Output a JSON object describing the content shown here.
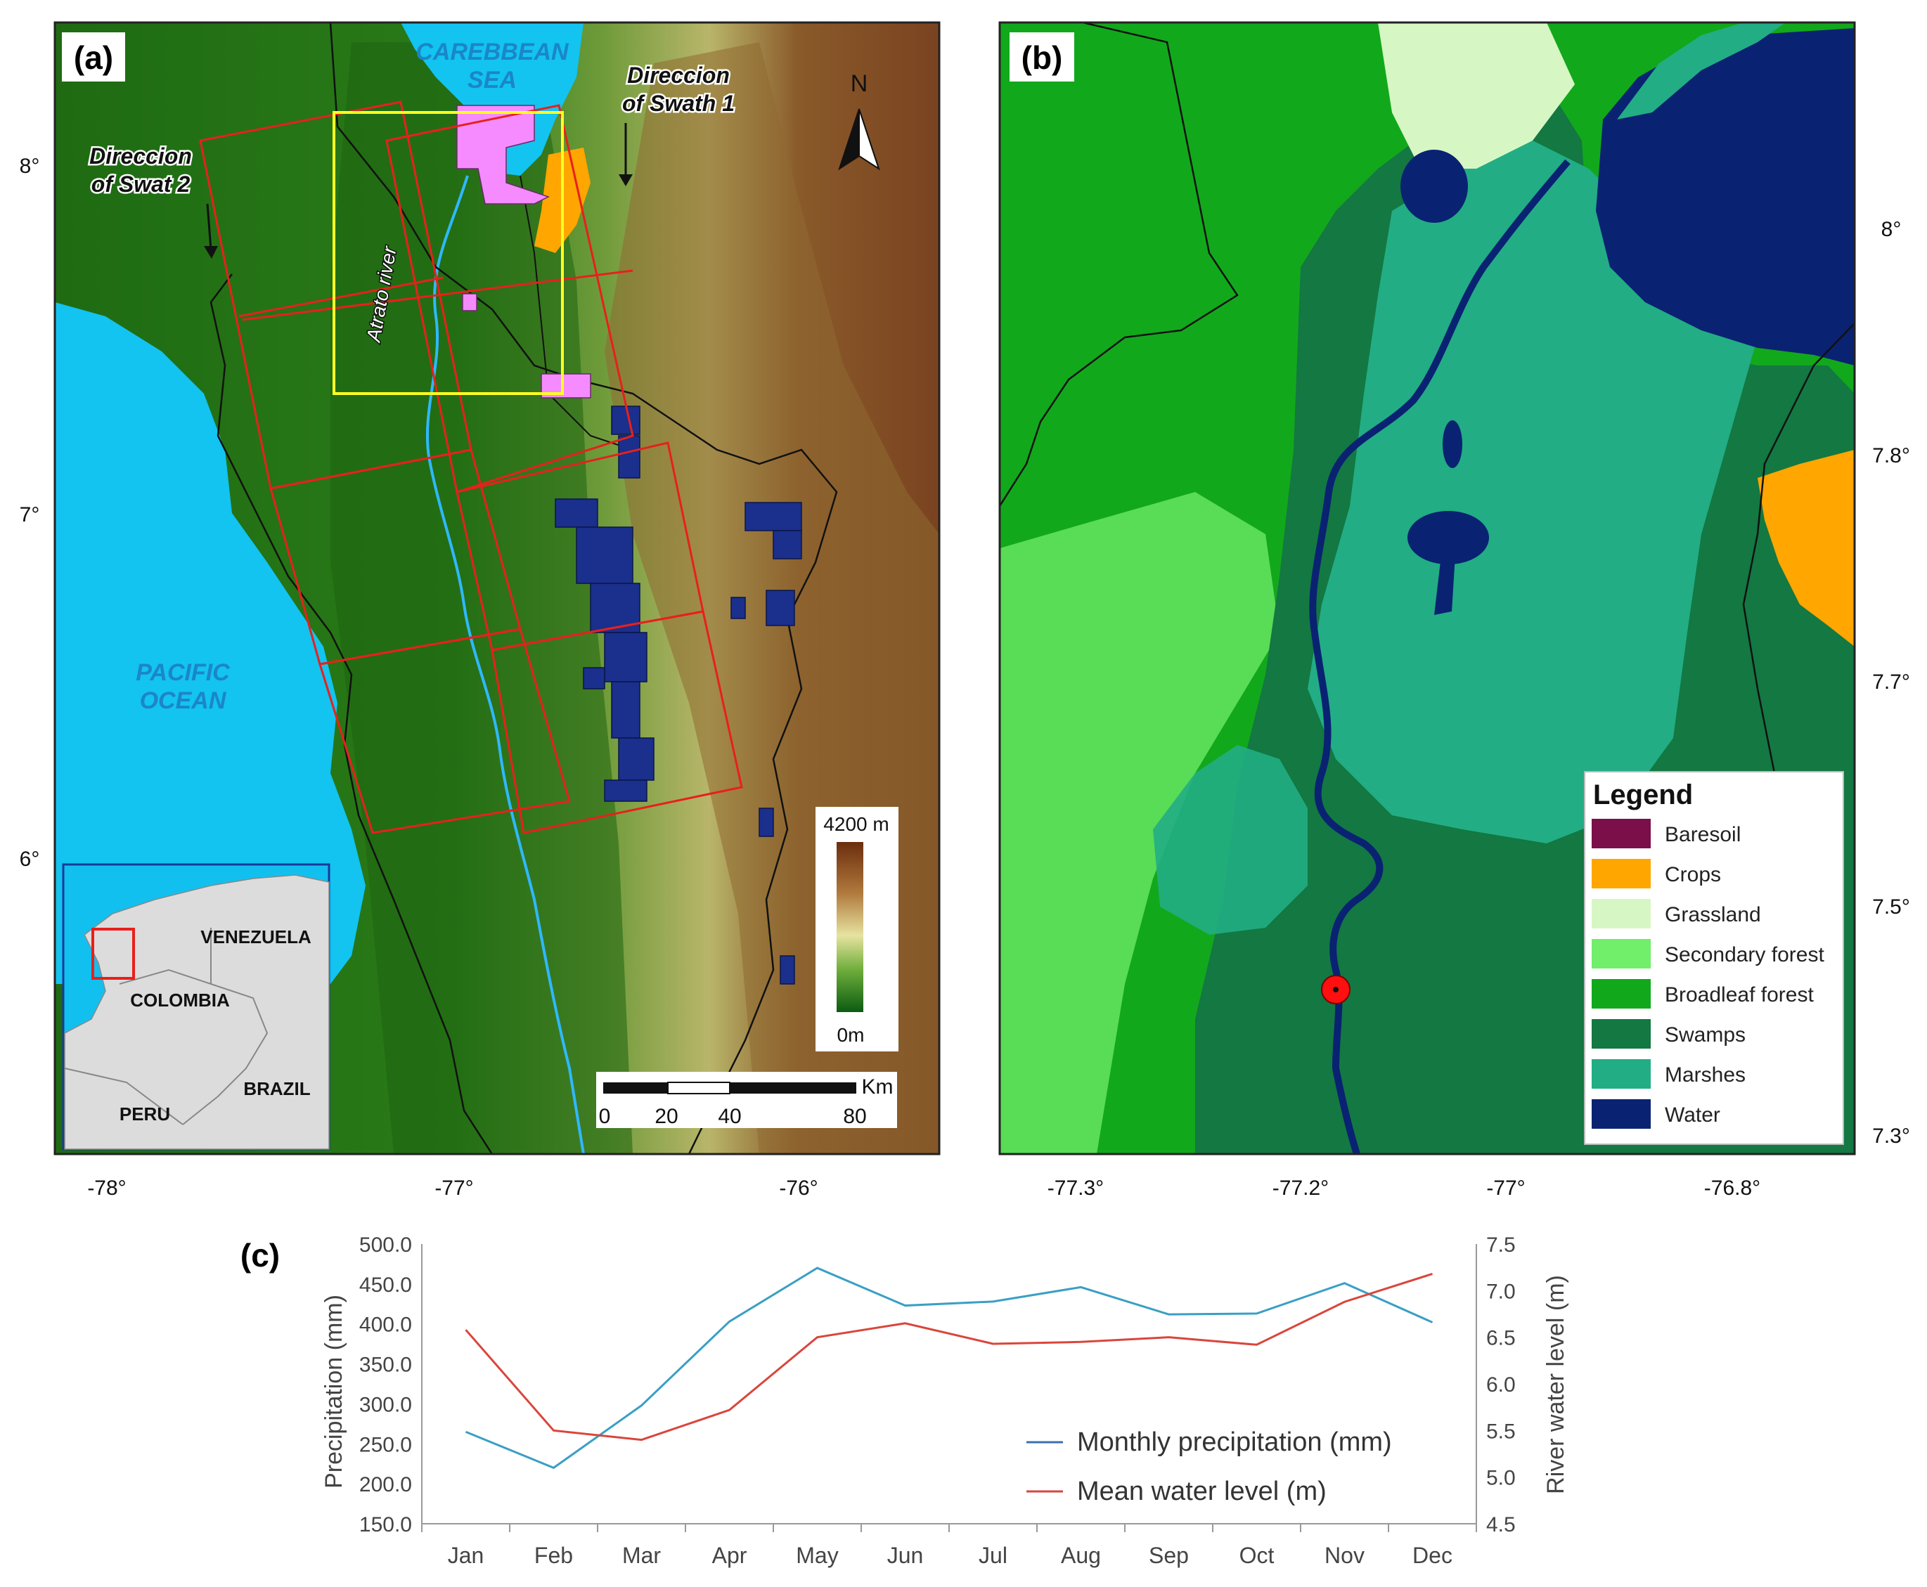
{
  "panel_a": {
    "label": "(a)",
    "caribbean": [
      "CAREBBEAN",
      "SEA"
    ],
    "pacific": [
      "PACIFIC",
      "OCEAN"
    ],
    "swath1": [
      "Direccion",
      "of Swath 1"
    ],
    "swath2": [
      "Direccion",
      "of Swat 2"
    ],
    "river": "Atrato river",
    "north": "N",
    "lat_ticks": [
      "8°",
      "7°",
      "6°"
    ],
    "lon_ticks": [
      "-78°",
      "-77°",
      "-76°"
    ],
    "elev_max": "4200 m",
    "elev_min": "0m",
    "scale_unit": "Km",
    "scale_ticks": [
      "0",
      "20",
      "40",
      "80"
    ],
    "inset": {
      "venezuela": "VENEZUELA",
      "colombia": "COLOMBIA",
      "peru": "PERU",
      "brazil": "BRAZIL"
    }
  },
  "panel_b": {
    "label": "(b)",
    "lat_ticks": [
      "8°",
      "7.8°",
      "7.7°",
      "7.5°",
      "7.3°"
    ],
    "lon_ticks": [
      "-77.3°",
      "-77.2°",
      "-77°",
      "-76.8°"
    ],
    "legend_title": "Legend",
    "legend": [
      {
        "name": "Baresoil",
        "color": "#7a0f4a"
      },
      {
        "name": "Crops",
        "color": "#ffa600"
      },
      {
        "name": "Grassland",
        "color": "#d6f7c4"
      },
      {
        "name": "Secondary forest",
        "color": "#71ee6a"
      },
      {
        "name": "Broadleaf forest",
        "color": "#12a81c"
      },
      {
        "name": "Swamps",
        "color": "#137842"
      },
      {
        "name": "Marshes",
        "color": "#22ad84"
      },
      {
        "name": "Water",
        "color": "#0a2272"
      }
    ]
  },
  "chart_data": {
    "type": "line",
    "panel_label": "(c)",
    "categories": [
      "Jan",
      "Feb",
      "Mar",
      "Apr",
      "May",
      "Jun",
      "Jul",
      "Aug",
      "Sep",
      "Oct",
      "Nov",
      "Dec"
    ],
    "ylabel": "Precipitation (mm)",
    "y2label": "River water level (m)",
    "ylim": [
      150,
      500
    ],
    "y2lim": [
      4.5,
      7.5
    ],
    "yticks": [
      "150.0",
      "200.0",
      "250.0",
      "300.0",
      "350.0",
      "400.0",
      "450.0",
      "500.0"
    ],
    "y2ticks": [
      "4.5",
      "5.0",
      "5.5",
      "6.0",
      "6.5",
      "7.0",
      "7.5"
    ],
    "legend_placement": "bottom-right",
    "series": [
      {
        "name": "Monthly precipitation (mm)",
        "axis": "left",
        "color": "#3a9fc4",
        "values": [
          265,
          220,
          298,
          403,
          470,
          423,
          428,
          446,
          412,
          413,
          451,
          402
        ]
      },
      {
        "name": "Mean water level (m)",
        "axis": "right",
        "color": "#d9463c",
        "values": [
          6.58,
          5.5,
          5.4,
          5.72,
          6.5,
          6.65,
          6.43,
          6.45,
          6.5,
          6.42,
          6.88,
          7.18
        ]
      }
    ]
  }
}
